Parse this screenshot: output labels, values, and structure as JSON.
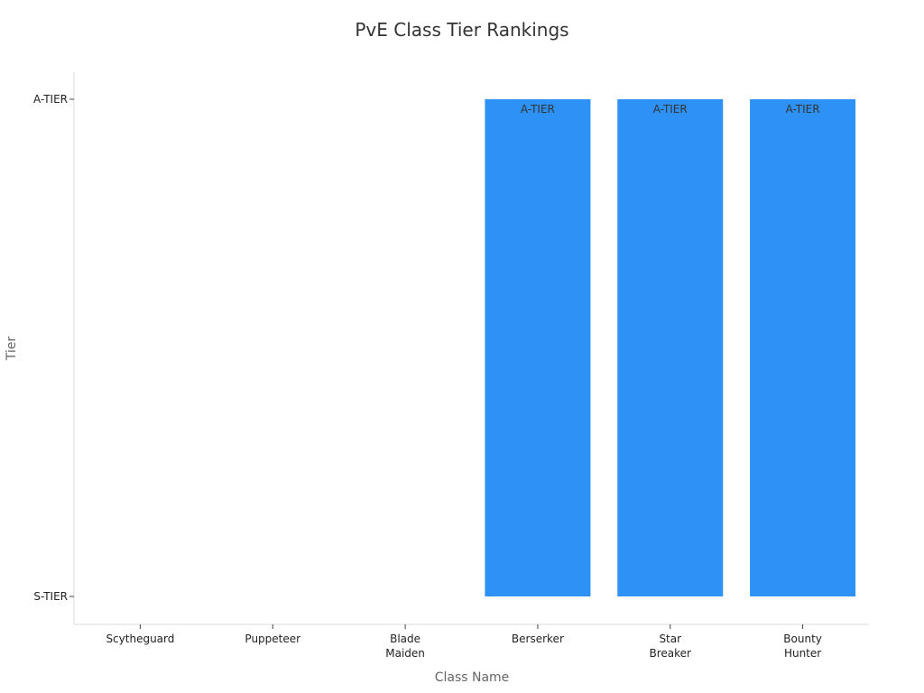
{
  "chart_data": {
    "type": "bar",
    "title": "PvE Class Tier Rankings",
    "xlabel": "Class Name",
    "ylabel": "Tier",
    "categories": [
      [
        "Scytheguard"
      ],
      [
        "Puppeteer"
      ],
      [
        "Blade",
        "Maiden"
      ],
      [
        "Berserker"
      ],
      [
        "Star",
        "Breaker"
      ],
      [
        "Bounty",
        "Hunter"
      ]
    ],
    "y_tick_labels": [
      "S-TIER",
      "A-TIER"
    ],
    "series": [
      {
        "values": [
          "",
          "",
          "",
          "A-TIER",
          "A-TIER",
          "A-TIER"
        ],
        "data_labels": [
          "",
          "",
          "",
          "A-TIER",
          "A-TIER",
          "A-TIER"
        ]
      }
    ],
    "grid": false,
    "legend": "none",
    "bar_color": "#2e91f5"
  }
}
